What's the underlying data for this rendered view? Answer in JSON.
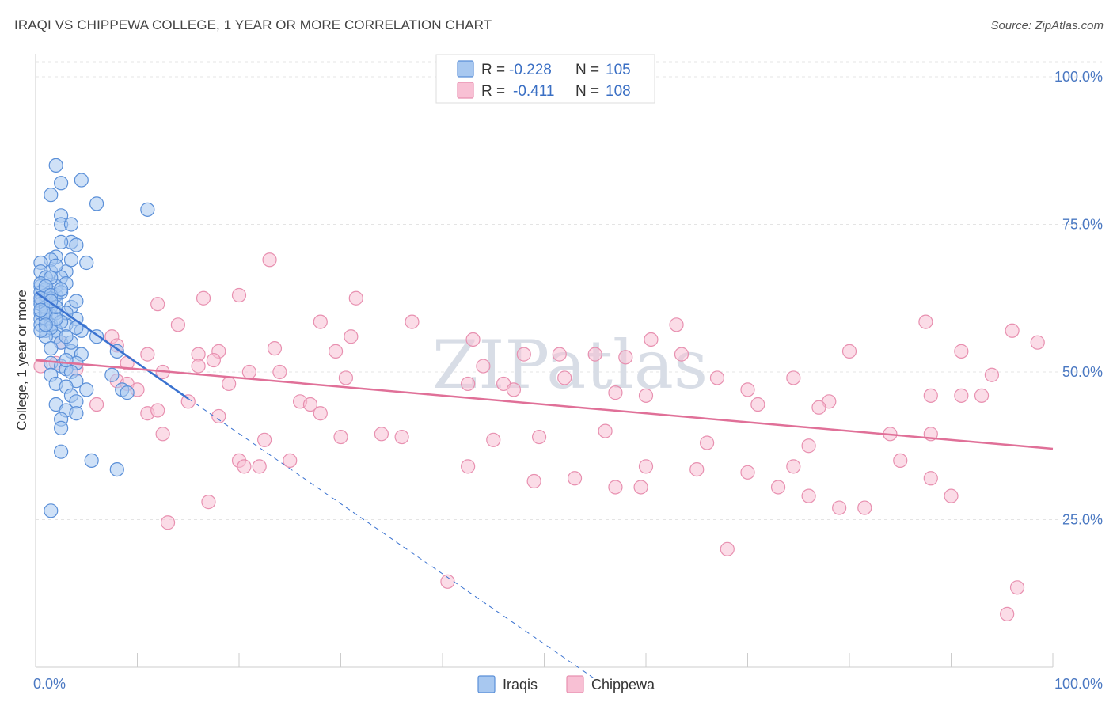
{
  "chart_data": {
    "type": "scatter",
    "title": "IRAQI VS CHIPPEWA COLLEGE, 1 YEAR OR MORE CORRELATION CHART",
    "source": "Source: ZipAtlas.com",
    "ylabel": "College, 1 year or more",
    "xlabel": "",
    "xlim": [
      0,
      100
    ],
    "ylim": [
      0,
      105
    ],
    "x_tick_labels": [
      "0.0%",
      "100.0%"
    ],
    "y_ticks": [
      {
        "value": 25,
        "label": "25.0%"
      },
      {
        "value": 50,
        "label": "50.0%"
      },
      {
        "value": 75,
        "label": "75.0%"
      },
      {
        "value": 100,
        "label": "100.0%"
      }
    ],
    "watermark": "ZIPatlas",
    "legend": [
      {
        "name": "Iraqis",
        "r_label": "R =",
        "r": "-0.228",
        "n_label": "N =",
        "n": "105"
      },
      {
        "name": "Chippewa",
        "r_label": "R =",
        "r": "-0.411",
        "n_label": "N =",
        "n": "108"
      }
    ],
    "colors": {
      "iraqis_fill": "#a8c8f0",
      "iraqis_stroke": "#5a8fd8",
      "iraqis_line": "#3a72d0",
      "chippewa_fill": "#f8c0d4",
      "chippewa_stroke": "#e890b0",
      "chippewa_line": "#e07098"
    },
    "series": [
      {
        "name": "Iraqis",
        "trend": {
          "x0": 0,
          "y0": 63.5,
          "x1": 15,
          "y1": 45.5,
          "dash_to_x": 55,
          "dash_to_y": -2
        },
        "points": [
          [
            2,
            85
          ],
          [
            4.5,
            82.5
          ],
          [
            2.5,
            82
          ],
          [
            6,
            78.5
          ],
          [
            1.5,
            80
          ],
          [
            11,
            77.5
          ],
          [
            2.5,
            76.5
          ],
          [
            2.5,
            75
          ],
          [
            3.5,
            75
          ],
          [
            3.5,
            72
          ],
          [
            2.5,
            72
          ],
          [
            4,
            71.5
          ],
          [
            2,
            69.5
          ],
          [
            1.5,
            69
          ],
          [
            0.5,
            68.5
          ],
          [
            5,
            68.5
          ],
          [
            3,
            67
          ],
          [
            1.5,
            67
          ],
          [
            0.5,
            67
          ],
          [
            1,
            66
          ],
          [
            2.5,
            66
          ],
          [
            3,
            65
          ],
          [
            0.5,
            64.5
          ],
          [
            1,
            64
          ],
          [
            1.5,
            63.5
          ],
          [
            0.5,
            63.5
          ],
          [
            2,
            63
          ],
          [
            1,
            62.5
          ],
          [
            0.5,
            62
          ],
          [
            3.5,
            61
          ],
          [
            1.5,
            61
          ],
          [
            1,
            60.5
          ],
          [
            0.5,
            60
          ],
          [
            1.5,
            59.5
          ],
          [
            0.5,
            59
          ],
          [
            4,
            59
          ],
          [
            0.5,
            58
          ],
          [
            1.5,
            58
          ],
          [
            3,
            58
          ],
          [
            1,
            57
          ],
          [
            2,
            57
          ],
          [
            4.5,
            57
          ],
          [
            2,
            56
          ],
          [
            2.5,
            55
          ],
          [
            6,
            56
          ],
          [
            3.5,
            53.5
          ],
          [
            4.5,
            53
          ],
          [
            8,
            53.5
          ],
          [
            1.5,
            51.5
          ],
          [
            2.5,
            51
          ],
          [
            4,
            51.5
          ],
          [
            3,
            50.5
          ],
          [
            3.5,
            50
          ],
          [
            1.5,
            49.5
          ],
          [
            7.5,
            49.5
          ],
          [
            4,
            48.5
          ],
          [
            2,
            48
          ],
          [
            3,
            47.5
          ],
          [
            3.5,
            46
          ],
          [
            5,
            47
          ],
          [
            8.5,
            47
          ],
          [
            4,
            45
          ],
          [
            2,
            44.5
          ],
          [
            9,
            46.5
          ],
          [
            3,
            43.5
          ],
          [
            4,
            43
          ],
          [
            2.5,
            42
          ],
          [
            2.5,
            40.5
          ],
          [
            2.5,
            36.5
          ],
          [
            5.5,
            35
          ],
          [
            8,
            33.5
          ],
          [
            1.5,
            26.5
          ],
          [
            1,
            63
          ],
          [
            2,
            64.5
          ],
          [
            0.5,
            61.5
          ],
          [
            1,
            59
          ],
          [
            2,
            62
          ],
          [
            3,
            60
          ],
          [
            1.5,
            57.5
          ],
          [
            0.5,
            65
          ],
          [
            1,
            61
          ],
          [
            2.5,
            63.5
          ],
          [
            3.5,
            55
          ],
          [
            1,
            56
          ],
          [
            2,
            60
          ],
          [
            0.5,
            57
          ],
          [
            1.5,
            66
          ],
          [
            2,
            68
          ],
          [
            3.5,
            69
          ],
          [
            4,
            62
          ],
          [
            1,
            64.5
          ],
          [
            2.5,
            58.5
          ],
          [
            1.5,
            54
          ],
          [
            3,
            52
          ],
          [
            0.5,
            62.5
          ],
          [
            1,
            60
          ],
          [
            2,
            59
          ],
          [
            3,
            56
          ],
          [
            1.5,
            63
          ],
          [
            0.5,
            60.5
          ],
          [
            2,
            61
          ],
          [
            1,
            58
          ],
          [
            4,
            57.5
          ],
          [
            2.5,
            64
          ],
          [
            1.5,
            62
          ]
        ]
      },
      {
        "name": "Chippewa",
        "trend": {
          "x0": 0,
          "y0": 52,
          "x1": 100,
          "y1": 37
        },
        "points": [
          [
            23,
            69
          ],
          [
            0.5,
            62.5
          ],
          [
            16.5,
            62.5
          ],
          [
            12,
            61.5
          ],
          [
            20,
            63
          ],
          [
            31.5,
            62.5
          ],
          [
            14,
            58
          ],
          [
            28,
            58.5
          ],
          [
            37,
            58.5
          ],
          [
            63,
            58
          ],
          [
            87.5,
            58.5
          ],
          [
            96,
            57
          ],
          [
            7.5,
            56
          ],
          [
            31,
            56
          ],
          [
            43,
            55.5
          ],
          [
            60.5,
            55.5
          ],
          [
            2.5,
            55
          ],
          [
            8,
            54.5
          ],
          [
            98.5,
            55
          ],
          [
            23.5,
            54
          ],
          [
            18,
            53.5
          ],
          [
            11,
            53
          ],
          [
            16,
            53
          ],
          [
            29.5,
            53.5
          ],
          [
            48,
            53
          ],
          [
            58,
            52.5
          ],
          [
            63.5,
            53
          ],
          [
            74.5,
            49
          ],
          [
            80,
            53.5
          ],
          [
            91,
            53.5
          ],
          [
            17.5,
            52
          ],
          [
            9,
            51.5
          ],
          [
            16,
            51
          ],
          [
            24,
            50
          ],
          [
            44,
            51
          ],
          [
            67,
            49
          ],
          [
            94,
            49.5
          ],
          [
            0.5,
            51
          ],
          [
            2,
            51.5
          ],
          [
            4,
            50.5
          ],
          [
            21,
            50
          ],
          [
            12.5,
            50
          ],
          [
            8,
            48.5
          ],
          [
            19,
            48
          ],
          [
            30.5,
            49
          ],
          [
            42.5,
            48
          ],
          [
            46,
            48
          ],
          [
            52,
            49
          ],
          [
            51.5,
            53
          ],
          [
            55,
            53
          ],
          [
            47,
            47
          ],
          [
            9,
            48
          ],
          [
            10,
            47
          ],
          [
            57,
            46.5
          ],
          [
            60,
            46
          ],
          [
            70,
            47
          ],
          [
            78,
            45
          ],
          [
            88,
            46
          ],
          [
            91,
            46
          ],
          [
            93,
            46
          ],
          [
            6,
            44.5
          ],
          [
            11,
            43
          ],
          [
            12,
            43.5
          ],
          [
            15,
            45
          ],
          [
            26,
            45
          ],
          [
            27,
            44.5
          ],
          [
            28,
            43
          ],
          [
            18,
            42.5
          ],
          [
            71,
            44.5
          ],
          [
            77,
            44
          ],
          [
            12.5,
            39.5
          ],
          [
            22.5,
            38.5
          ],
          [
            30,
            39
          ],
          [
            34,
            39.5
          ],
          [
            36,
            39
          ],
          [
            45,
            38.5
          ],
          [
            49.5,
            39
          ],
          [
            56,
            40
          ],
          [
            66,
            38
          ],
          [
            76,
            37.5
          ],
          [
            84,
            39.5
          ],
          [
            88,
            39.5
          ],
          [
            20,
            35
          ],
          [
            20.5,
            34
          ],
          [
            22,
            34
          ],
          [
            25,
            35
          ],
          [
            42.5,
            34
          ],
          [
            60,
            34
          ],
          [
            65,
            33.5
          ],
          [
            70,
            33
          ],
          [
            74.5,
            34
          ],
          [
            85,
            35
          ],
          [
            88,
            32
          ],
          [
            49,
            31.5
          ],
          [
            53,
            32
          ],
          [
            57,
            30.5
          ],
          [
            59.5,
            30.5
          ],
          [
            73,
            30.5
          ],
          [
            76,
            29
          ],
          [
            79,
            27
          ],
          [
            81.5,
            27
          ],
          [
            90,
            29
          ],
          [
            17,
            28
          ],
          [
            13,
            24.5
          ],
          [
            68,
            20
          ],
          [
            40.5,
            14.5
          ],
          [
            96.5,
            13.5
          ],
          [
            95.5,
            9
          ]
        ]
      }
    ]
  }
}
